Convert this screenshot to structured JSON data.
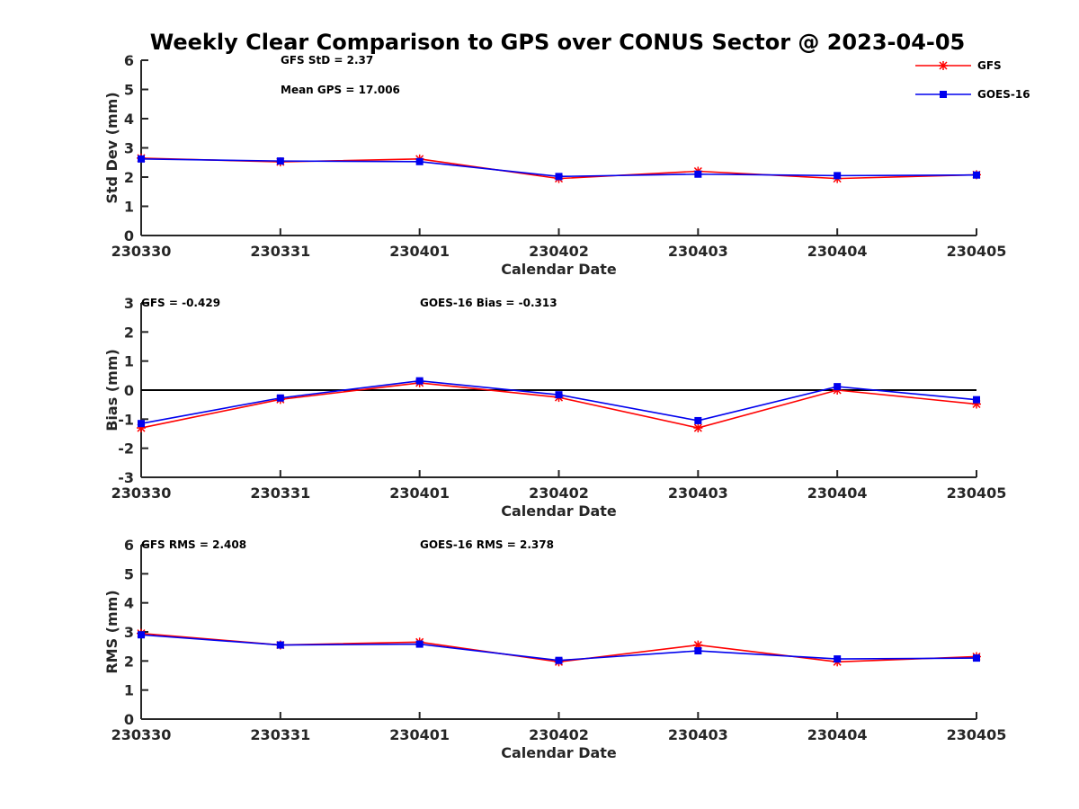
{
  "title": "Weekly Clear Comparison to GPS over CONUS Sector @ 2023-04-05",
  "colors": {
    "gfs": "#ff0000",
    "goes": "#0000ee",
    "axis": "#262626",
    "zero_line": "#000000"
  },
  "legend": {
    "placement": "top-right",
    "items": [
      {
        "label": "GFS",
        "marker": "asterisk",
        "color": "#ff0000"
      },
      {
        "label": "GOES-16",
        "marker": "square",
        "color": "#0000ee"
      }
    ]
  },
  "chart_data": [
    {
      "type": "line",
      "categories": [
        "230330",
        "230331",
        "230401",
        "230402",
        "230403",
        "230404",
        "230405"
      ],
      "xlabel": "Calendar Date",
      "ylabel": "Std Dev (mm)",
      "ylim": [
        0,
        6
      ],
      "yticks": [
        "0",
        "1",
        "2",
        "3",
        "4",
        "5",
        "6"
      ],
      "zero_line": false,
      "annotations": [
        "GFS StD = 2.37",
        "Mean GPS = 17.006"
      ],
      "series": [
        {
          "name": "GFS",
          "values": [
            2.65,
            2.52,
            2.62,
            1.95,
            2.2,
            1.95,
            2.08
          ]
        },
        {
          "name": "GOES-16",
          "values": [
            2.62,
            2.55,
            2.53,
            2.02,
            2.1,
            2.05,
            2.07
          ]
        }
      ]
    },
    {
      "type": "line",
      "categories": [
        "230330",
        "230331",
        "230401",
        "230402",
        "230403",
        "230404",
        "230405"
      ],
      "xlabel": "Calendar Date",
      "ylabel": "Bias (mm)",
      "ylim": [
        -3,
        3
      ],
      "yticks": [
        "-3",
        "-2",
        "-1",
        "0",
        "1",
        "2",
        "3"
      ],
      "zero_line": true,
      "annotations": [
        "GFS = -0.429",
        "GOES-16 Bias  = -0.313"
      ],
      "series": [
        {
          "name": "GFS",
          "values": [
            -1.3,
            -0.32,
            0.25,
            -0.25,
            -1.3,
            0.0,
            -0.48
          ]
        },
        {
          "name": "GOES-16",
          "values": [
            -1.15,
            -0.27,
            0.32,
            -0.16,
            -1.05,
            0.12,
            -0.33
          ]
        }
      ]
    },
    {
      "type": "line",
      "categories": [
        "230330",
        "230331",
        "230401",
        "230402",
        "230403",
        "230404",
        "230405"
      ],
      "xlabel": "Calendar Date",
      "ylabel": "RMS (mm)",
      "ylim": [
        0,
        6
      ],
      "yticks": [
        "0",
        "1",
        "2",
        "3",
        "4",
        "5",
        "6"
      ],
      "zero_line": false,
      "annotations": [
        "GFS RMS = 2.408",
        "GOES-16 RMS = 2.378"
      ],
      "series": [
        {
          "name": "GFS",
          "values": [
            2.95,
            2.55,
            2.65,
            1.97,
            2.55,
            1.97,
            2.15
          ]
        },
        {
          "name": "GOES-16",
          "values": [
            2.9,
            2.55,
            2.58,
            2.02,
            2.35,
            2.07,
            2.1
          ]
        }
      ]
    }
  ]
}
